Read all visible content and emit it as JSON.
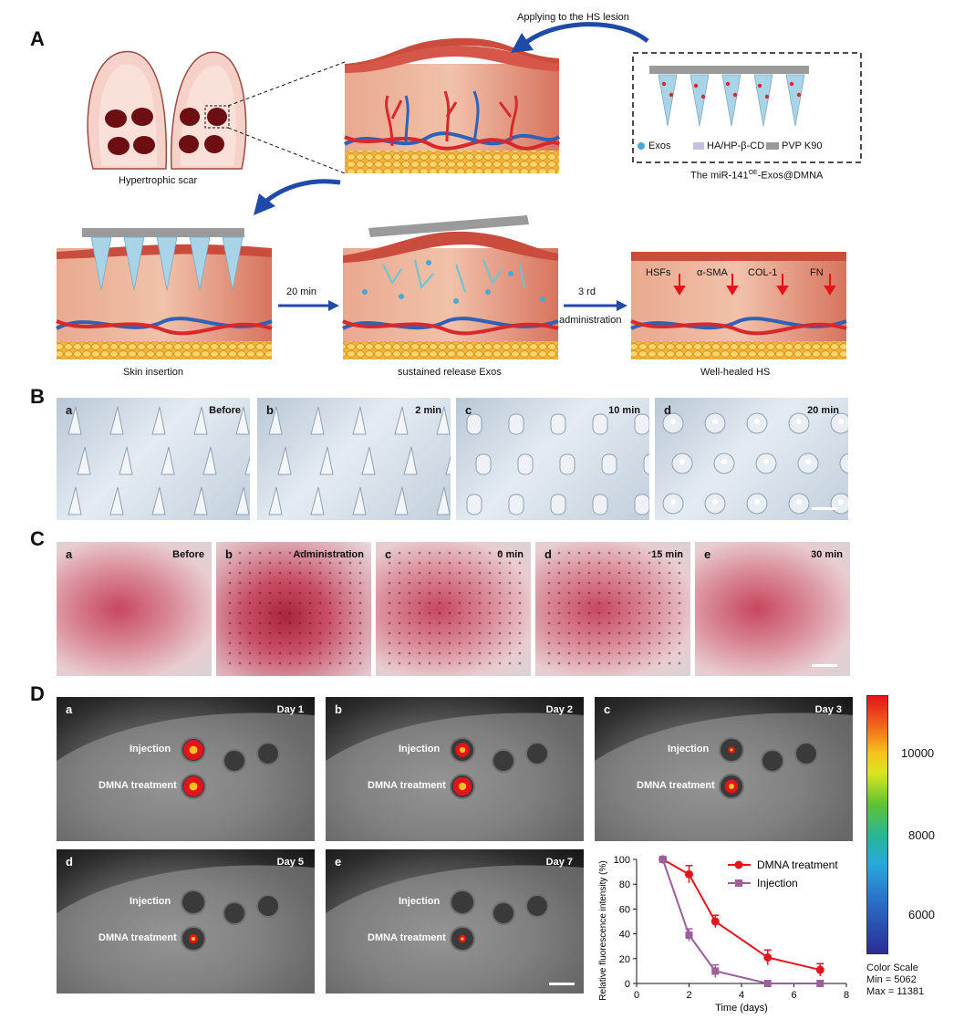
{
  "panels": {
    "A": "A",
    "B": "B",
    "C": "C",
    "D": "D"
  },
  "panelA": {
    "applying": "Applying to the HS lesion",
    "hypertrophic": "Hypertrophic scar",
    "legend_exos": "Exos",
    "legend_ha": "HA/HP-β-CD",
    "legend_pvp": "PVP K90",
    "dmna_title_pre": "The miR-141",
    "dmna_title_sup": "OE",
    "dmna_title_post": "-Exos@DMNA",
    "skin_insertion": "Skin insertion",
    "sustained": "sustained release Exos",
    "well_healed": "Well-healed HS",
    "min20": "20 min",
    "rd3": "3 rd",
    "administration": "administration",
    "hsfs": "HSFs",
    "asma": "α-SMA",
    "col1": "COL-1",
    "fn": "FN"
  },
  "panelB": [
    {
      "letter": "a",
      "time": "Before"
    },
    {
      "letter": "b",
      "time": "2 min"
    },
    {
      "letter": "c",
      "time": "10 min"
    },
    {
      "letter": "d",
      "time": "20 min"
    }
  ],
  "panelC": [
    {
      "letter": "a",
      "time": "Before"
    },
    {
      "letter": "b",
      "time": "Administration"
    },
    {
      "letter": "c",
      "time": "0 min"
    },
    {
      "letter": "d",
      "time": "15 min"
    },
    {
      "letter": "e",
      "time": "30 min"
    }
  ],
  "panelD": {
    "images": [
      {
        "letter": "a",
        "day": "Day 1",
        "inj_level": 1.0,
        "dmna_level": 1.0
      },
      {
        "letter": "b",
        "day": "Day 2",
        "inj_level": 0.6,
        "dmna_level": 0.9
      },
      {
        "letter": "c",
        "day": "Day 3",
        "inj_level": 0.1,
        "dmna_level": 0.55
      },
      {
        "letter": "d",
        "day": "Day 5",
        "inj_level": 0.0,
        "dmna_level": 0.25
      },
      {
        "letter": "e",
        "day": "Day 7",
        "inj_level": 0.0,
        "dmna_level": 0.15
      }
    ],
    "injection": "Injection",
    "dmna_treatment": "DMNA treatment",
    "colorscale": {
      "ticks": [
        "10000",
        "8000",
        "6000"
      ],
      "title": "Color Scale",
      "min": "Min = 5062",
      "max": "Max = 11381"
    }
  },
  "chart_data": {
    "type": "line",
    "xlabel": "Time (days)",
    "ylabel": "Relative fluorescence intensity (%)",
    "xlim": [
      0,
      8
    ],
    "ylim": [
      0,
      100
    ],
    "xticks": [
      "0",
      "2",
      "4",
      "6",
      "8"
    ],
    "yticks": [
      "0",
      "20",
      "40",
      "60",
      "80",
      "100"
    ],
    "series": [
      {
        "name": "DMNA treatment",
        "color": "#e3141b",
        "x": [
          1,
          2,
          3,
          5,
          7
        ],
        "y": [
          100,
          88,
          50,
          21,
          11
        ],
        "err": [
          0,
          7,
          5,
          6,
          5
        ]
      },
      {
        "name": "Injection",
        "color": "#9b5f9a",
        "x": [
          1,
          2,
          3,
          5,
          7
        ],
        "y": [
          100,
          39,
          10,
          0,
          0
        ],
        "err": [
          0,
          5,
          5,
          0,
          0
        ]
      }
    ]
  }
}
